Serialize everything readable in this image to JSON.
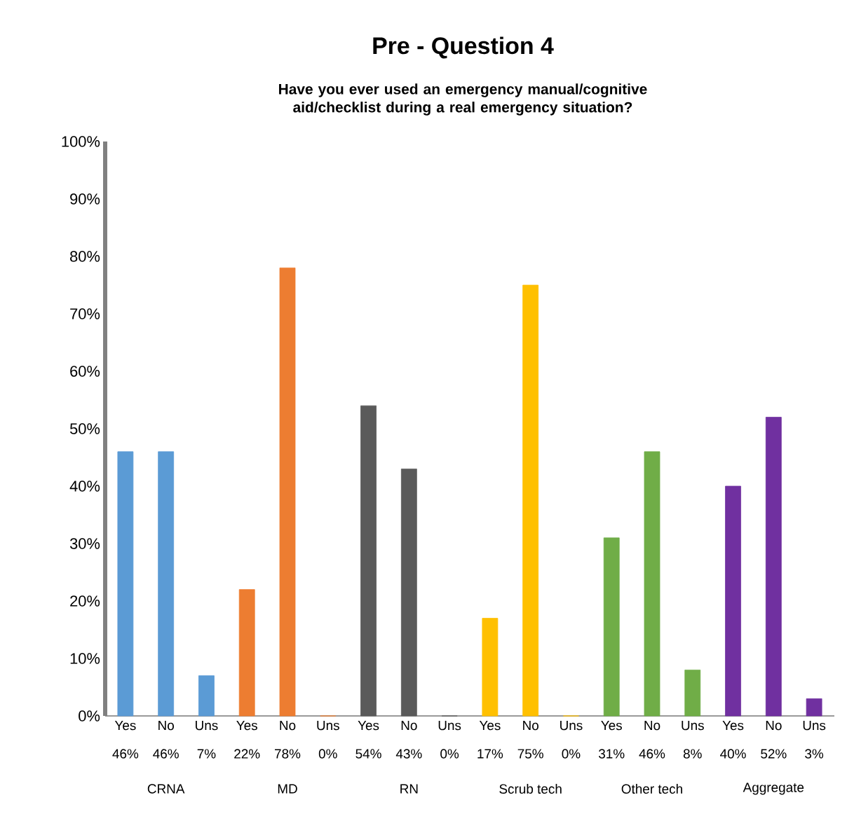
{
  "chart_data": {
    "type": "bar",
    "title": "Pre - Question 4",
    "subtitle": "Have you ever used an emergency manual/cognitive aid/checklist during a real emergency situation?",
    "categories": [
      "Yes",
      "No",
      "Uns",
      "Yes",
      "No",
      "Uns",
      "Yes",
      "No",
      "Uns",
      "Yes",
      "No",
      "Uns",
      "Yes",
      "No",
      "Uns",
      "Yes",
      "No",
      "Uns"
    ],
    "values": [
      46,
      46,
      7,
      22,
      78,
      0,
      54,
      43,
      0,
      17,
      75,
      0,
      31,
      46,
      8,
      40,
      52,
      3
    ],
    "colors": [
      "#5b9bd5",
      "#5b9bd5",
      "#5b9bd5",
      "#ed7d31",
      "#ed7d31",
      "#ed7d31",
      "#5a5a5a",
      "#5a5a5a",
      "#5a5a5a",
      "#ffc000",
      "#ffc000",
      "#ffc000",
      "#70ad47",
      "#70ad47",
      "#70ad47",
      "#7030a0",
      "#7030a0",
      "#7030a0"
    ],
    "value_labels": [
      "46%",
      "46%",
      "7%",
      "22%",
      "78%",
      "0%",
      "54%",
      "43%",
      "0%",
      "17%",
      "75%",
      "0%",
      "31%",
      "46%",
      "8%",
      "40%",
      "52%",
      "3%"
    ],
    "annotations": [
      "CRNA",
      "MD",
      "RN",
      "Scrub tech",
      "Other tech",
      "Aggregate"
    ],
    "ylim": [
      0,
      100
    ],
    "yticks": [
      {
        "value": 0,
        "label": "0%"
      },
      {
        "value": 10,
        "label": "10%"
      },
      {
        "value": 20,
        "label": "20%"
      },
      {
        "value": 30,
        "label": "30%"
      },
      {
        "value": 40,
        "label": "40%"
      },
      {
        "value": 50,
        "label": "50%"
      },
      {
        "value": 60,
        "label": "60%"
      },
      {
        "value": 70,
        "label": "70%"
      },
      {
        "value": 80,
        "label": "80%"
      },
      {
        "value": 90,
        "label": "90%"
      },
      {
        "value": 100,
        "label": "100%"
      }
    ]
  }
}
